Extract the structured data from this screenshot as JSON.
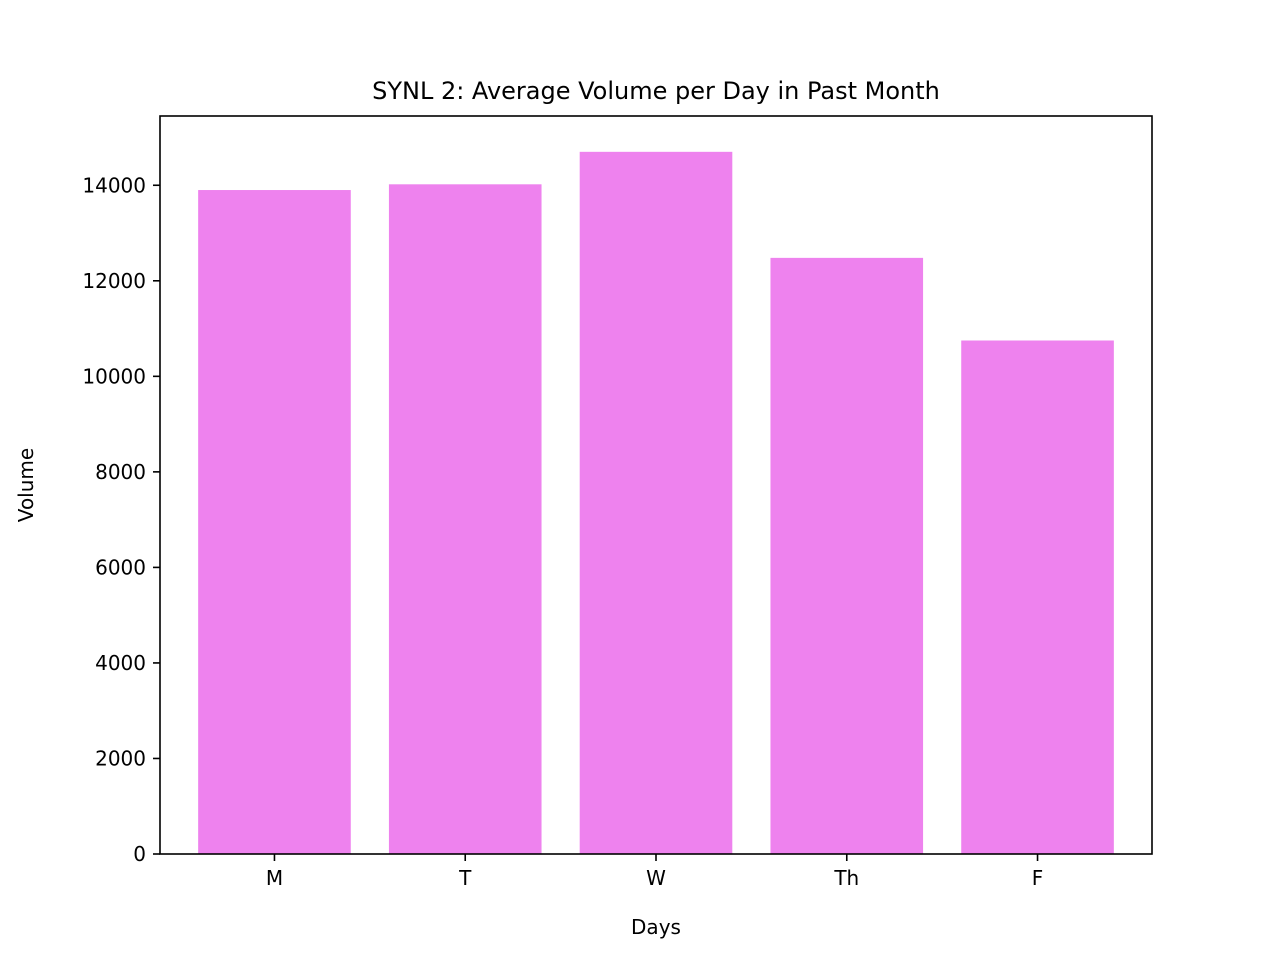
{
  "chart_data": {
    "type": "bar",
    "title": "SYNL 2: Average Volume per Day in Past Month",
    "xlabel": "Days",
    "ylabel": "Volume",
    "categories": [
      "M",
      "T",
      "W",
      "Th",
      "F"
    ],
    "values": [
      13900,
      14020,
      14700,
      12480,
      10750
    ],
    "ylim": [
      0,
      15450
    ],
    "yticks": [
      0,
      2000,
      4000,
      6000,
      8000,
      10000,
      12000,
      14000
    ],
    "grid": false,
    "bar_color": "#ee82ee",
    "axis_color": "#000000"
  }
}
